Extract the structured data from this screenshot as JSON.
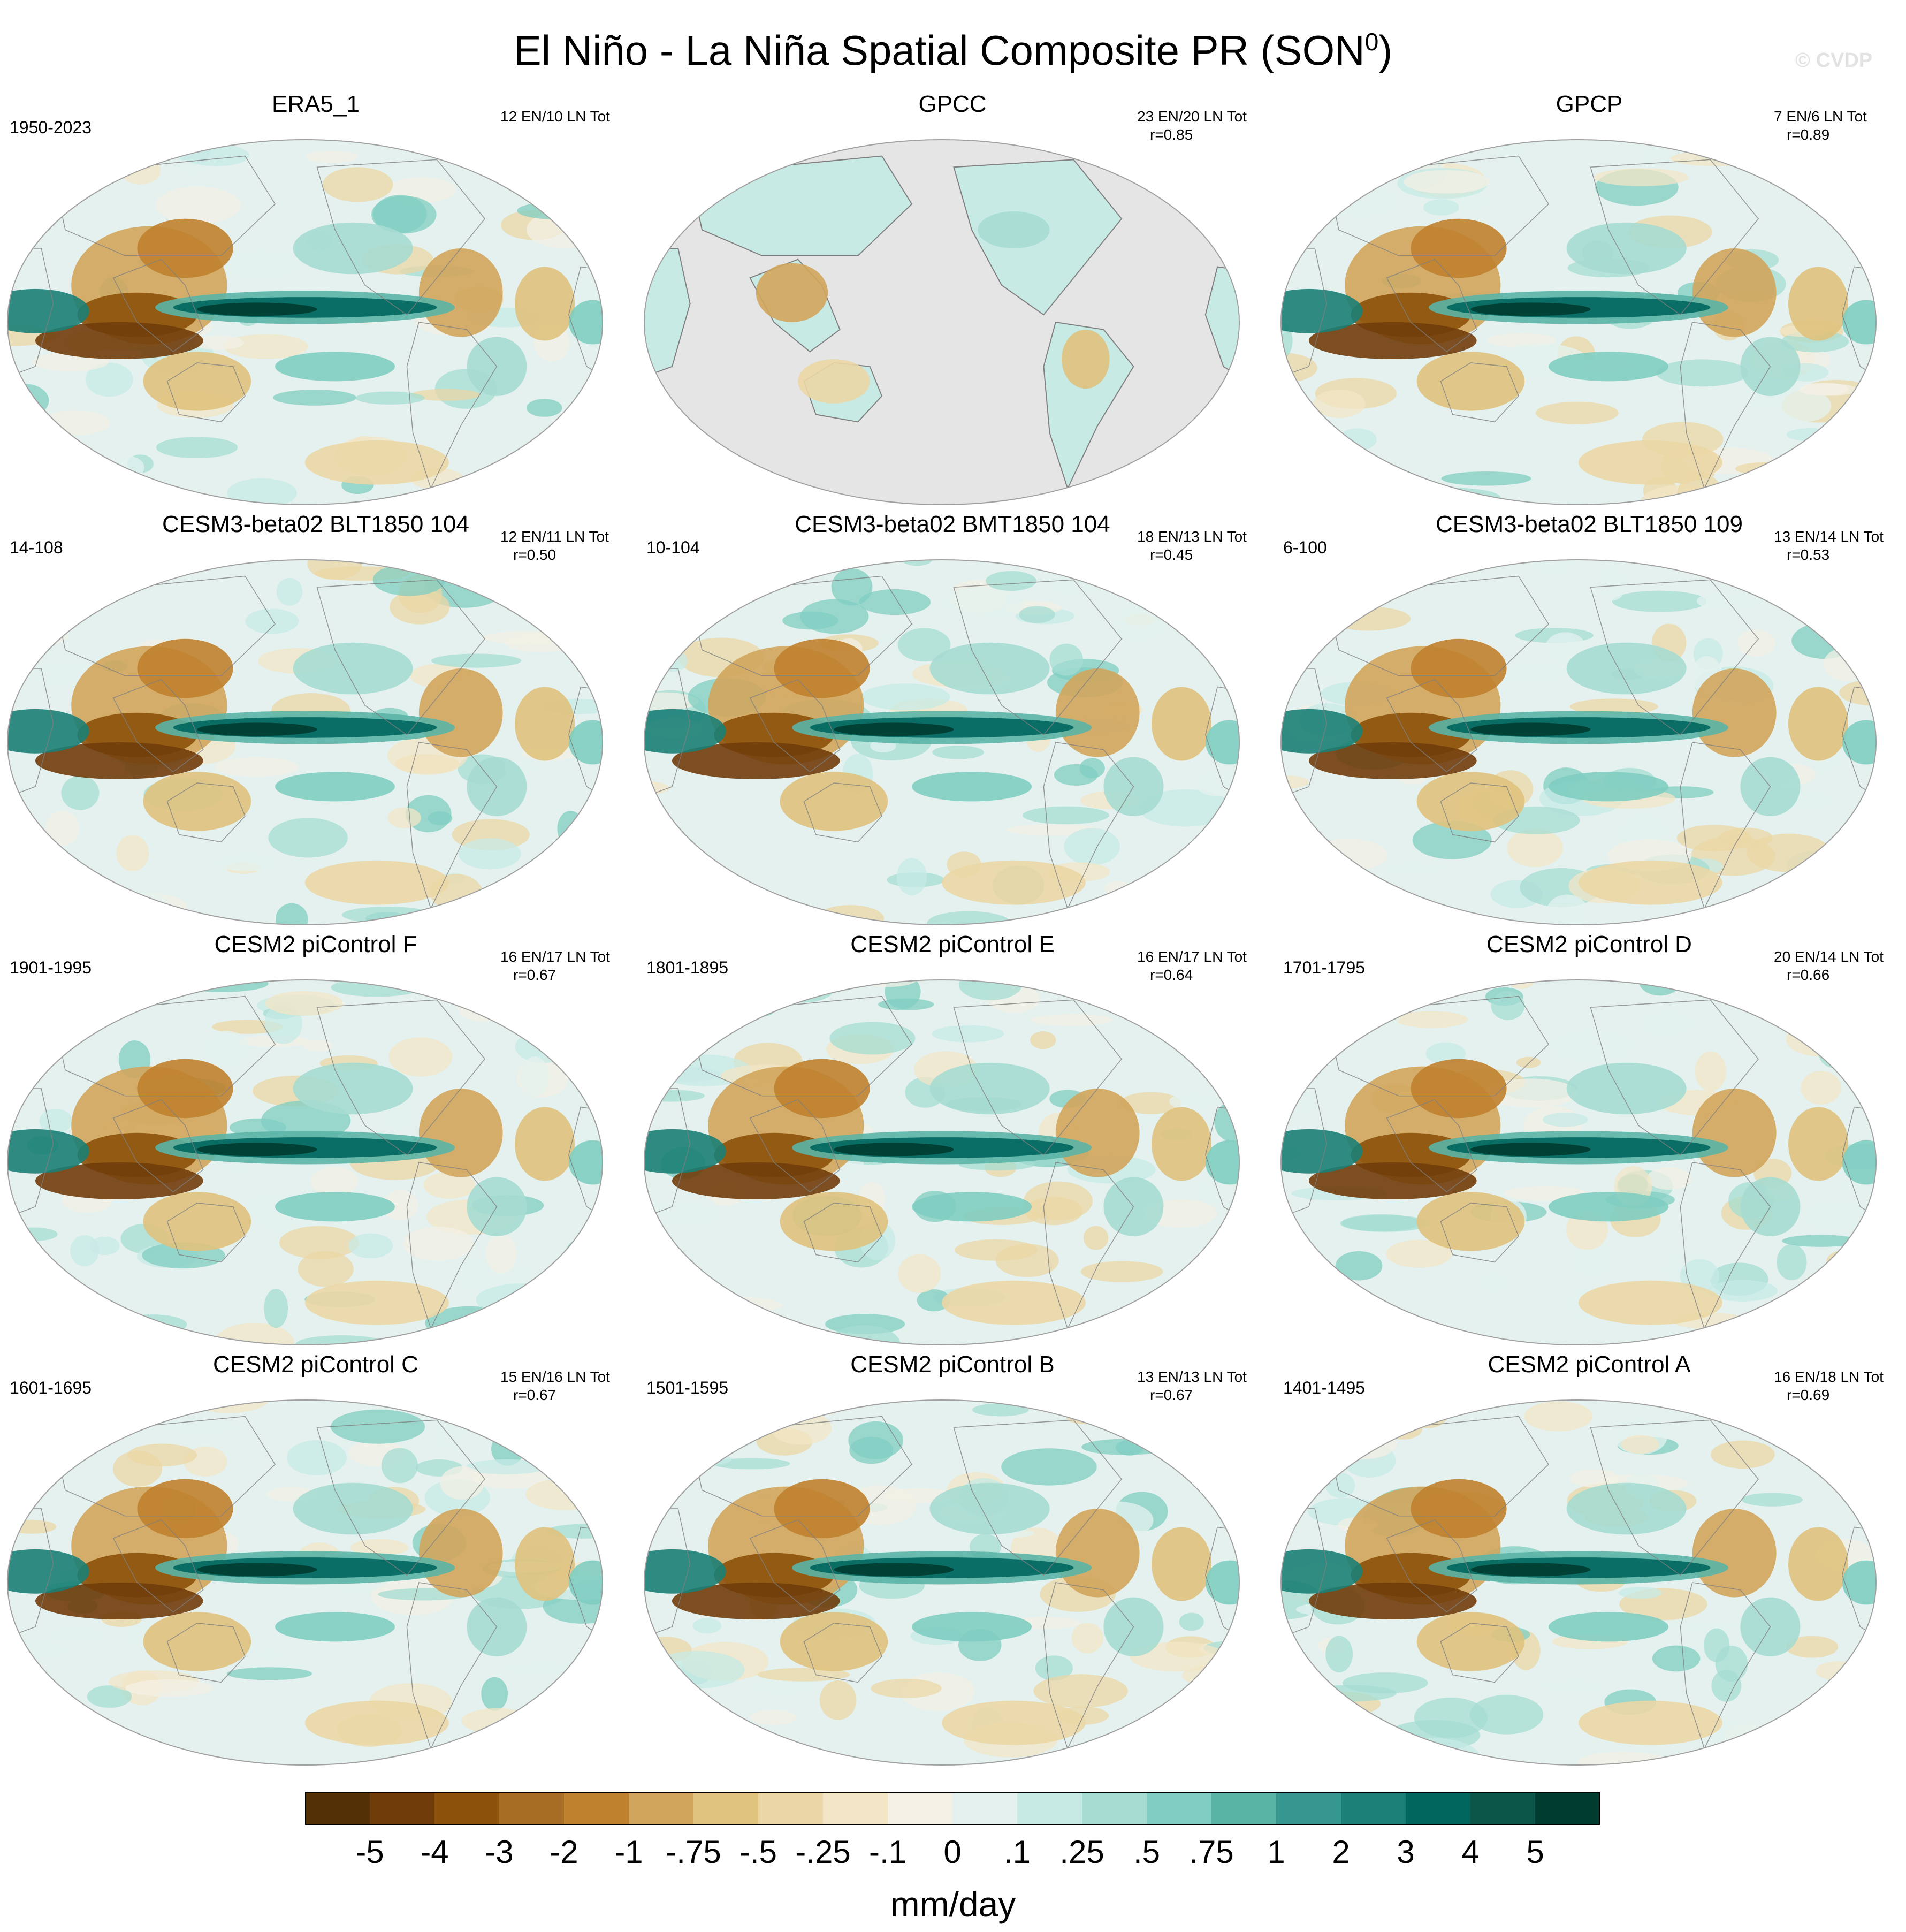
{
  "title": "El Niño - La Niña Spatial Composite PR (SON",
  "title_sup": "0",
  "title_close": ")",
  "watermark": "© CVDP",
  "panels": [
    {
      "title": "ERA5_1",
      "years": "1950-2023",
      "stats": "12 EN/10 LN Tot",
      "r": "",
      "mode": "full"
    },
    {
      "title": "GPCC",
      "years": "",
      "stats": "23 EN/20 LN Tot",
      "r": "r=0.85",
      "mode": "land"
    },
    {
      "title": "GPCP",
      "years": "",
      "stats": "7 EN/6 LN Tot",
      "r": "r=0.89",
      "mode": "full"
    },
    {
      "title": "CESM3-beta02 BLT1850 104",
      "years": "14-108",
      "stats": "12 EN/11 LN Tot",
      "r": "r=0.50",
      "mode": "full"
    },
    {
      "title": "CESM3-beta02 BMT1850 104",
      "years": "10-104",
      "stats": "18 EN/13 LN Tot",
      "r": "r=0.45",
      "mode": "full"
    },
    {
      "title": "CESM3-beta02 BLT1850 109",
      "years": "6-100",
      "stats": "13 EN/14 LN Tot",
      "r": "r=0.53",
      "mode": "full"
    },
    {
      "title": "CESM2 piControl F",
      "years": "1901-1995",
      "stats": "16 EN/17 LN Tot",
      "r": "r=0.67",
      "mode": "full"
    },
    {
      "title": "CESM2 piControl E",
      "years": "1801-1895",
      "stats": "16 EN/17 LN Tot",
      "r": "r=0.64",
      "mode": "full"
    },
    {
      "title": "CESM2 piControl D",
      "years": "1701-1795",
      "stats": "20 EN/14 LN Tot",
      "r": "r=0.66",
      "mode": "full"
    },
    {
      "title": "CESM2 piControl C",
      "years": "1601-1695",
      "stats": "15 EN/16 LN Tot",
      "r": "r=0.67",
      "mode": "full"
    },
    {
      "title": "CESM2 piControl B",
      "years": "1501-1595",
      "stats": "13 EN/13 LN Tot",
      "r": "r=0.67",
      "mode": "full"
    },
    {
      "title": "CESM2 piControl A",
      "years": "1401-1495",
      "stats": "16 EN/18 LN Tot",
      "r": "r=0.69",
      "mode": "full"
    }
  ],
  "colorbar": {
    "labels": [
      "-5",
      "-4",
      "-3",
      "-2",
      "-1",
      "-.75",
      "-.5",
      "-.25",
      "-.1",
      "0",
      ".1",
      ".25",
      ".5",
      ".75",
      "1",
      "2",
      "3",
      "4",
      "5"
    ],
    "colors": [
      "#543005",
      "#703c0a",
      "#8c510a",
      "#a76d24",
      "#bf812d",
      "#d2a55c",
      "#dfc27d",
      "#ebd7a5",
      "#f2e6c6",
      "#f3f0e6",
      "#e4f1ef",
      "#c7eae5",
      "#a6dcd2",
      "#80cdc1",
      "#5ab4a6",
      "#35978f",
      "#1b7f76",
      "#01665e",
      "#0b5549",
      "#003c30"
    ],
    "units": "mm/day"
  },
  "map_colors": {
    "ocean_mask": "#e5e5e5",
    "coast": "#808080",
    "outline": "#a0a0a0"
  }
}
